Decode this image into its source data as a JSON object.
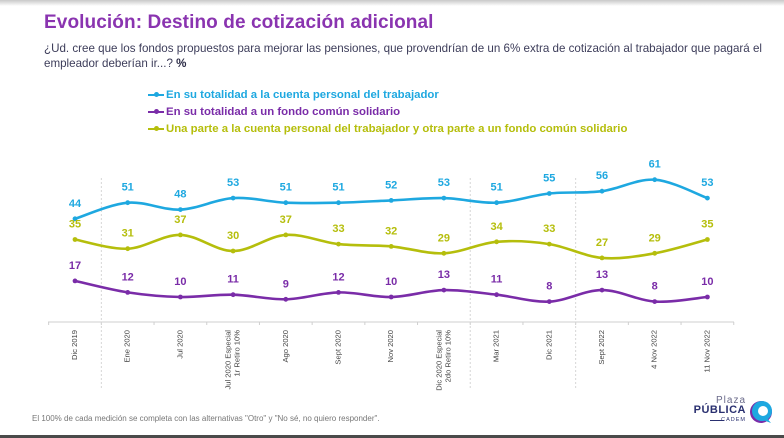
{
  "title": "Evolución: Destino de cotización adicional",
  "question": "¿Ud. cree que los fondos propuestos para mejorar las pensiones, que provendrían de un 6% extra de cotización al trabajador que pagará el empleador deberían ir...?",
  "question_suffix": "%",
  "footnote": "El 100% de cada medición se completa con las alternativas \"Otro\" y \"No sé, no quiero responder\".",
  "logo": {
    "plaza": "Plaza",
    "publica": "PÚBLICA",
    "cadem": "CADEM"
  },
  "colors": {
    "blue": "#1ea8e0",
    "purple": "#7a2ca8",
    "olive": "#b5be0c",
    "title": "#8a34b0"
  },
  "chart_data": {
    "type": "line",
    "title": "Evolución: Destino de cotización adicional",
    "xlabel": "",
    "ylabel": "%",
    "ylim": [
      0,
      70
    ],
    "grid": false,
    "legend_position": "top-left",
    "categories": [
      "Dic 2019",
      "Ene 2020",
      "Jul 2020",
      "Jul 2020 Especial|1r Retiro 10%",
      "Ago 2020",
      "Sept 2020",
      "Nov 2020",
      "Dic 2020 Especial|2do Retiro 10%",
      "Mar 2021",
      "Dic 2021",
      "Sept 2022",
      "4 Nov 2022",
      "11 Nov 2022"
    ],
    "dividers_after_index": [
      0,
      7,
      9
    ],
    "series": [
      {
        "name": "En su totalidad a la cuenta personal del trabajador",
        "color": "#1ea8e0",
        "values": [
          44,
          51,
          48,
          53,
          51,
          51,
          52,
          53,
          51,
          55,
          56,
          61,
          53
        ]
      },
      {
        "name": "En su totalidad a un fondo común solidario",
        "color": "#7a2ca8",
        "values": [
          17,
          12,
          10,
          11,
          9,
          12,
          10,
          13,
          11,
          8,
          13,
          8,
          10
        ]
      },
      {
        "name": "Una parte a la cuenta personal del trabajador y otra parte a un fondo común solidario",
        "color": "#b5be0c",
        "values": [
          35,
          31,
          37,
          30,
          37,
          33,
          32,
          29,
          34,
          33,
          27,
          29,
          35
        ]
      }
    ]
  }
}
